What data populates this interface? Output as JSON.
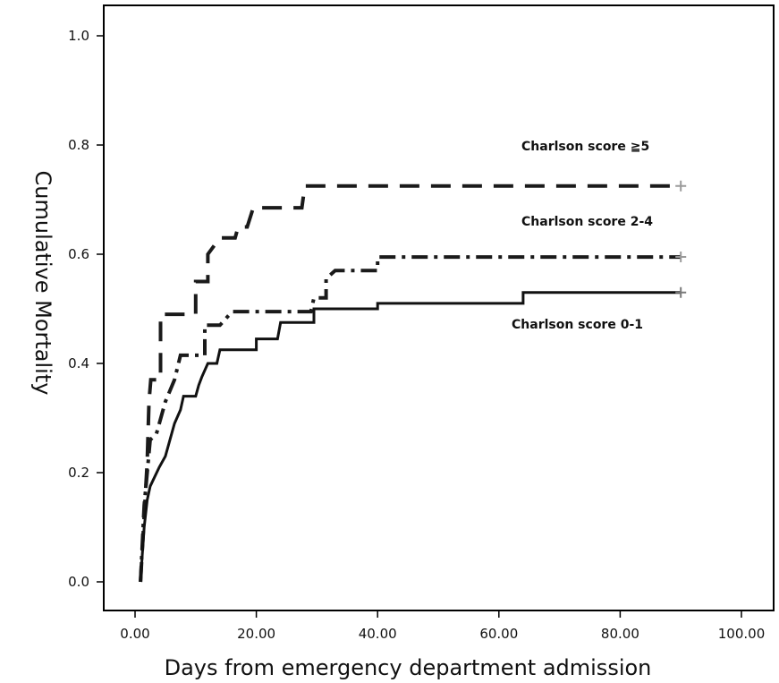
{
  "chart_data": {
    "type": "line",
    "title": "",
    "xlabel": "Days from emergency department admission",
    "ylabel": "Cumulative Mortality",
    "xlim": [
      0,
      100
    ],
    "ylim": [
      0,
      1.0
    ],
    "x_ticks": [
      "0.00",
      "20.00",
      "40.00",
      "60.00",
      "80.00",
      "100.00"
    ],
    "y_ticks": [
      "0.0",
      "0.2",
      "0.4",
      "0.6",
      "0.8",
      "1.0"
    ],
    "grid": false,
    "legend": "none",
    "series": [
      {
        "name": "Charlson score ≧5",
        "line_style": "dashed",
        "color": "#1a1a1a",
        "censor_mark_color": "#9a9a9a",
        "points": [
          [
            0.9,
            0.0
          ],
          [
            1.5,
            0.12
          ],
          [
            2.0,
            0.22
          ],
          [
            2.3,
            0.33
          ],
          [
            2.6,
            0.37
          ],
          [
            4.2,
            0.37
          ],
          [
            4.2,
            0.49
          ],
          [
            10.0,
            0.49
          ],
          [
            10.0,
            0.55
          ],
          [
            12.0,
            0.55
          ],
          [
            12.0,
            0.6
          ],
          [
            14.0,
            0.63
          ],
          [
            16.5,
            0.63
          ],
          [
            17.0,
            0.65
          ],
          [
            18.5,
            0.65
          ],
          [
            19.5,
            0.685
          ],
          [
            27.5,
            0.685
          ],
          [
            28.0,
            0.725
          ],
          [
            90.0,
            0.725
          ]
        ]
      },
      {
        "name": "Charlson score 2-4",
        "line_style": "dash-dot",
        "color": "#1a1a1a",
        "censor_mark_color": "#9a9a9a",
        "points": [
          [
            0.9,
            0.0
          ],
          [
            1.5,
            0.14
          ],
          [
            2.0,
            0.2
          ],
          [
            2.5,
            0.26
          ],
          [
            3.5,
            0.27
          ],
          [
            5.0,
            0.33
          ],
          [
            6.5,
            0.37
          ],
          [
            7.5,
            0.415
          ],
          [
            11.5,
            0.415
          ],
          [
            11.5,
            0.47
          ],
          [
            14.0,
            0.47
          ],
          [
            16.0,
            0.495
          ],
          [
            29.0,
            0.495
          ],
          [
            29.5,
            0.52
          ],
          [
            31.5,
            0.52
          ],
          [
            31.5,
            0.555
          ],
          [
            33.0,
            0.57
          ],
          [
            40.0,
            0.57
          ],
          [
            40.0,
            0.595
          ],
          [
            90.0,
            0.595
          ]
        ]
      },
      {
        "name": "Charlson score 0-1",
        "line_style": "solid",
        "color": "#111111",
        "censor_mark_color": "#7a7a7a",
        "points": [
          [
            0.9,
            0.0
          ],
          [
            1.2,
            0.05
          ],
          [
            1.5,
            0.1
          ],
          [
            2.0,
            0.15
          ],
          [
            2.5,
            0.175
          ],
          [
            4.0,
            0.21
          ],
          [
            5.0,
            0.23
          ],
          [
            6.5,
            0.29
          ],
          [
            7.5,
            0.315
          ],
          [
            8.0,
            0.34
          ],
          [
            10.0,
            0.34
          ],
          [
            10.5,
            0.36
          ],
          [
            11.0,
            0.375
          ],
          [
            12.0,
            0.4
          ],
          [
            13.5,
            0.4
          ],
          [
            14.0,
            0.425
          ],
          [
            20.0,
            0.425
          ],
          [
            20.0,
            0.445
          ],
          [
            23.5,
            0.445
          ],
          [
            24.0,
            0.475
          ],
          [
            29.5,
            0.475
          ],
          [
            29.5,
            0.5
          ],
          [
            40.0,
            0.5
          ],
          [
            40.0,
            0.51
          ],
          [
            64.0,
            0.51
          ],
          [
            64.0,
            0.53
          ],
          [
            90.0,
            0.53
          ]
        ]
      }
    ]
  }
}
